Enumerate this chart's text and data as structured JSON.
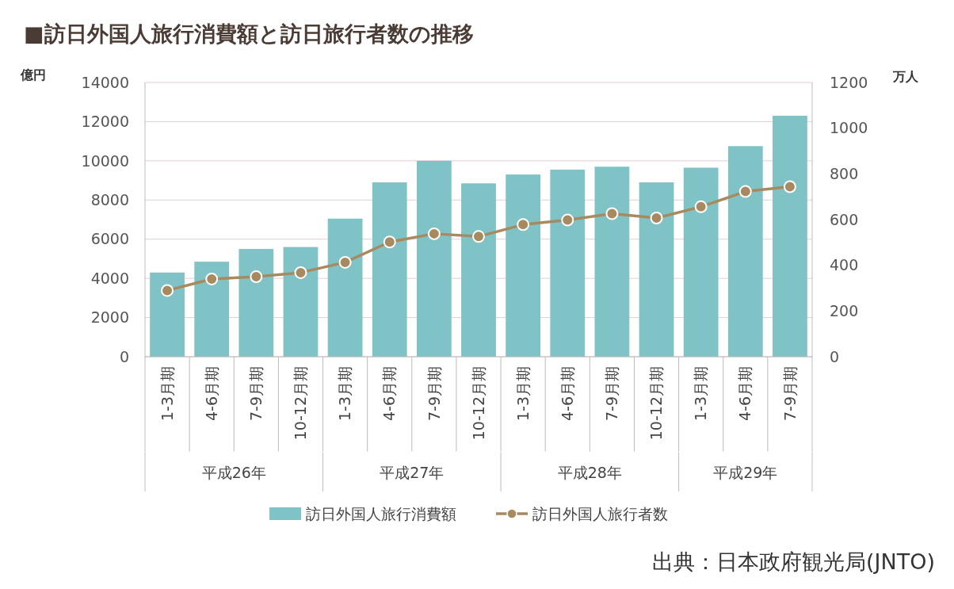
{
  "chart_data": {
    "type": "bar",
    "title": "■訪日外国人旅行消費額と訪日旅行者数の推移",
    "ylabel": "億円",
    "y2label": "万人",
    "categories": [
      "1-3月期",
      "4-6月期",
      "7-9月期",
      "10-12月期",
      "1-3月期",
      "4-6月期",
      "7-9月期",
      "10-12月期",
      "1-3月期",
      "4-6月期",
      "7-9月期",
      "10-12月期",
      "1-3月期",
      "4-6月期",
      "7-9月期"
    ],
    "series": [
      {
        "name": "訪日外国人旅行消費額",
        "color": "#80c3c6",
        "values": [
          4300,
          4850,
          5500,
          5600,
          7050,
          8900,
          10000,
          8850,
          9300,
          9550,
          9700,
          8900,
          9650,
          10750,
          12300
        ]
      },
      {
        "name": "訪日外国人旅行者数",
        "type": "line",
        "axis": "y2",
        "color": "#a78a5f",
        "marker": "circle",
        "values": [
          290,
          340,
          350,
          368,
          413,
          502,
          538,
          526,
          578,
          598,
          626,
          607,
          656,
          723,
          744
        ]
      }
    ],
    "ylim": [
      0,
      14000
    ],
    "yticks": [
      0,
      2000,
      4000,
      6000,
      8000,
      10000,
      12000,
      14000
    ],
    "y2lim": [
      0,
      1200
    ],
    "y2ticks": [
      0,
      200,
      400,
      600,
      800,
      1000,
      1200
    ],
    "grid": "y",
    "legend": "bottom",
    "annotations": [
      "平成26年",
      "平成27年",
      "平成28年",
      "平成29年",
      "出典：日本政府観光局(JNTO)"
    ]
  }
}
